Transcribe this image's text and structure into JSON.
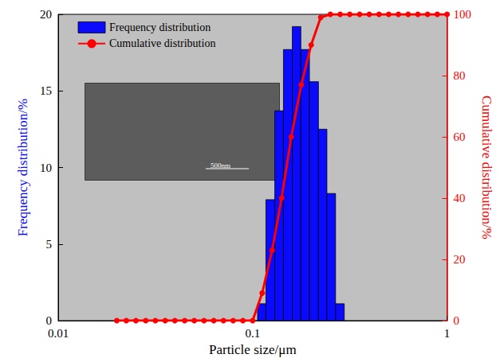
{
  "chart_data": {
    "type": "histogram",
    "xlabel": "Particle size/μm",
    "ylabel": "Frequency distribution/%",
    "y2label": "Cumulative distribution/%",
    "log": "x",
    "xlim": [
      0.01,
      1
    ],
    "xticks": [
      0.01,
      0.1,
      1
    ],
    "ylim": [
      0,
      20
    ],
    "yticks": [
      0,
      5,
      10,
      15,
      20
    ],
    "y2lim": [
      0,
      100
    ],
    "y2ticks": [
      0,
      20,
      40,
      60,
      80,
      100
    ],
    "grid": false,
    "legend": "upper left",
    "annotations": [
      {
        "text": "500nm"
      }
    ],
    "series": [
      {
        "name": "Frequency distribution",
        "type": "histogram",
        "color": "#0a0aff",
        "bins": [
          0.106,
          0.117,
          0.13,
          0.144,
          0.16,
          0.177,
          0.196,
          0.218,
          0.241,
          0.267,
          0.296
        ],
        "values": [
          1.1,
          7.9,
          13.7,
          17.7,
          19.2,
          17.7,
          15.6,
          12.5,
          8.3,
          1.1
        ]
      },
      {
        "name": "Cumulative distribution",
        "type": "line",
        "color": "#ff0000",
        "axis": "y2",
        "marker": "circle",
        "x": [
          0.02,
          0.0224,
          0.0251,
          0.0282,
          0.0316,
          0.0355,
          0.0398,
          0.0447,
          0.0501,
          0.0562,
          0.0631,
          0.0708,
          0.0794,
          0.0891,
          0.1,
          0.112,
          0.126,
          0.141,
          0.158,
          0.178,
          0.2,
          0.224,
          0.251,
          0.282,
          0.316,
          0.355,
          0.398,
          0.447,
          0.501,
          0.562,
          0.631,
          0.708,
          0.794,
          0.891,
          1.0
        ],
        "values": [
          0,
          0,
          0,
          0,
          0,
          0,
          0,
          0,
          0,
          0,
          0,
          0,
          0,
          0,
          0,
          9,
          23,
          40,
          60,
          77,
          90,
          99,
          100,
          100,
          100,
          100,
          100,
          100,
          100,
          100,
          100,
          100,
          100,
          100,
          100
        ]
      }
    ]
  }
}
